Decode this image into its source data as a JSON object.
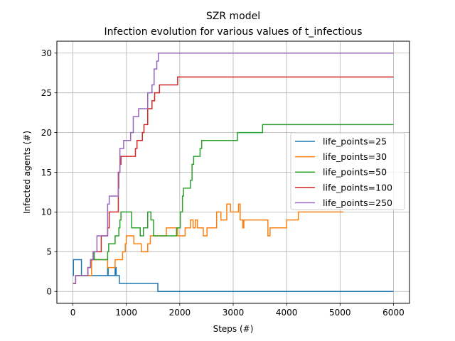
{
  "chart_data": {
    "type": "line",
    "title": "SZR model",
    "subtitle": "Infection evolution for various values of t_infectious",
    "xlabel": "Steps (#)",
    "ylabel": "Infected agents (#)",
    "xlim": [
      -300,
      6300
    ],
    "ylim": [
      -1.5,
      31.5
    ],
    "x_ticks": [
      0,
      1000,
      2000,
      3000,
      4000,
      5000,
      6000
    ],
    "y_ticks": [
      0,
      5,
      10,
      15,
      20,
      25,
      30
    ],
    "grid": true,
    "legend_position": "center-right",
    "series": [
      {
        "name": "life_points=25",
        "color": "#1f77b4",
        "points": [
          [
            0,
            2
          ],
          [
            10,
            2
          ],
          [
            10,
            4
          ],
          [
            160,
            4
          ],
          [
            160,
            2
          ],
          [
            650,
            2
          ],
          [
            650,
            3
          ],
          [
            660,
            3
          ],
          [
            660,
            2
          ],
          [
            790,
            2
          ],
          [
            790,
            3
          ],
          [
            810,
            3
          ],
          [
            810,
            2
          ],
          [
            870,
            2
          ],
          [
            870,
            1
          ],
          [
            1590,
            1
          ],
          [
            1590,
            0
          ],
          [
            6000,
            0
          ]
        ]
      },
      {
        "name": "life_points=30",
        "color": "#ff7f0e",
        "points": [
          [
            0,
            1
          ],
          [
            50,
            1
          ],
          [
            50,
            2
          ],
          [
            350,
            2
          ],
          [
            350,
            4
          ],
          [
            650,
            4
          ],
          [
            650,
            3
          ],
          [
            790,
            3
          ],
          [
            790,
            4
          ],
          [
            930,
            4
          ],
          [
            930,
            5
          ],
          [
            980,
            5
          ],
          [
            980,
            6
          ],
          [
            1000,
            6
          ],
          [
            1000,
            7
          ],
          [
            1140,
            7
          ],
          [
            1140,
            6
          ],
          [
            1280,
            6
          ],
          [
            1280,
            5
          ],
          [
            1400,
            5
          ],
          [
            1400,
            6
          ],
          [
            1450,
            6
          ],
          [
            1450,
            7
          ],
          [
            1750,
            7
          ],
          [
            1750,
            8
          ],
          [
            1960,
            8
          ],
          [
            1960,
            7
          ],
          [
            2100,
            7
          ],
          [
            2100,
            8
          ],
          [
            2200,
            8
          ],
          [
            2200,
            9
          ],
          [
            2250,
            9
          ],
          [
            2250,
            8
          ],
          [
            2290,
            8
          ],
          [
            2290,
            9
          ],
          [
            2330,
            9
          ],
          [
            2330,
            8
          ],
          [
            2440,
            8
          ],
          [
            2440,
            7
          ],
          [
            2510,
            7
          ],
          [
            2510,
            8
          ],
          [
            2690,
            8
          ],
          [
            2690,
            10
          ],
          [
            2770,
            10
          ],
          [
            2770,
            9
          ],
          [
            2880,
            9
          ],
          [
            2880,
            11
          ],
          [
            2950,
            11
          ],
          [
            2950,
            10
          ],
          [
            3100,
            10
          ],
          [
            3100,
            11
          ],
          [
            3130,
            11
          ],
          [
            3130,
            9
          ],
          [
            3180,
            9
          ],
          [
            3180,
            8
          ],
          [
            3200,
            8
          ],
          [
            3200,
            9
          ],
          [
            3650,
            9
          ],
          [
            3650,
            7
          ],
          [
            3690,
            7
          ],
          [
            3690,
            8
          ],
          [
            4000,
            8
          ],
          [
            4000,
            9
          ],
          [
            4220,
            9
          ],
          [
            4220,
            10
          ],
          [
            5060,
            10
          ]
        ]
      },
      {
        "name": "life_points=50",
        "color": "#2ca02c",
        "points": [
          [
            0,
            1
          ],
          [
            50,
            1
          ],
          [
            50,
            2
          ],
          [
            280,
            2
          ],
          [
            280,
            3
          ],
          [
            330,
            3
          ],
          [
            330,
            4
          ],
          [
            380,
            4
          ],
          [
            380,
            5
          ],
          [
            400,
            5
          ],
          [
            400,
            4
          ],
          [
            650,
            4
          ],
          [
            650,
            5
          ],
          [
            670,
            5
          ],
          [
            670,
            6
          ],
          [
            790,
            6
          ],
          [
            790,
            7
          ],
          [
            860,
            7
          ],
          [
            860,
            8
          ],
          [
            880,
            8
          ],
          [
            880,
            9
          ],
          [
            900,
            9
          ],
          [
            900,
            10
          ],
          [
            1100,
            10
          ],
          [
            1100,
            8
          ],
          [
            1260,
            8
          ],
          [
            1260,
            7
          ],
          [
            1320,
            7
          ],
          [
            1320,
            8
          ],
          [
            1400,
            8
          ],
          [
            1400,
            10
          ],
          [
            1460,
            10
          ],
          [
            1460,
            9
          ],
          [
            1510,
            9
          ],
          [
            1510,
            7
          ],
          [
            1940,
            7
          ],
          [
            1940,
            8
          ],
          [
            2010,
            8
          ],
          [
            2010,
            10
          ],
          [
            2050,
            10
          ],
          [
            2050,
            12
          ],
          [
            2070,
            12
          ],
          [
            2070,
            13
          ],
          [
            2200,
            13
          ],
          [
            2200,
            14
          ],
          [
            2230,
            14
          ],
          [
            2230,
            16
          ],
          [
            2260,
            16
          ],
          [
            2260,
            17
          ],
          [
            2380,
            17
          ],
          [
            2380,
            18
          ],
          [
            2410,
            18
          ],
          [
            2410,
            19
          ],
          [
            3080,
            19
          ],
          [
            3080,
            20
          ],
          [
            3550,
            20
          ],
          [
            3550,
            21
          ],
          [
            6000,
            21
          ]
        ]
      },
      {
        "name": "life_points=100",
        "color": "#d62728",
        "points": [
          [
            0,
            1
          ],
          [
            50,
            1
          ],
          [
            50,
            2
          ],
          [
            280,
            2
          ],
          [
            280,
            3
          ],
          [
            330,
            3
          ],
          [
            330,
            4
          ],
          [
            380,
            4
          ],
          [
            380,
            5
          ],
          [
            530,
            5
          ],
          [
            530,
            7
          ],
          [
            650,
            7
          ],
          [
            650,
            8
          ],
          [
            680,
            8
          ],
          [
            680,
            10
          ],
          [
            850,
            10
          ],
          [
            850,
            15
          ],
          [
            880,
            15
          ],
          [
            880,
            16
          ],
          [
            900,
            16
          ],
          [
            900,
            17
          ],
          [
            1170,
            17
          ],
          [
            1170,
            18
          ],
          [
            1200,
            18
          ],
          [
            1200,
            19
          ],
          [
            1300,
            19
          ],
          [
            1300,
            20
          ],
          [
            1330,
            20
          ],
          [
            1330,
            21
          ],
          [
            1400,
            21
          ],
          [
            1400,
            23
          ],
          [
            1480,
            23
          ],
          [
            1480,
            24
          ],
          [
            1530,
            24
          ],
          [
            1530,
            25
          ],
          [
            1620,
            25
          ],
          [
            1620,
            26
          ],
          [
            1960,
            26
          ],
          [
            1960,
            27
          ],
          [
            6000,
            27
          ]
        ]
      },
      {
        "name": "life_points=250",
        "color": "#9467bd",
        "points": [
          [
            0,
            1
          ],
          [
            50,
            1
          ],
          [
            50,
            2
          ],
          [
            280,
            2
          ],
          [
            280,
            3
          ],
          [
            330,
            3
          ],
          [
            330,
            4
          ],
          [
            380,
            4
          ],
          [
            380,
            5
          ],
          [
            450,
            5
          ],
          [
            450,
            7
          ],
          [
            650,
            7
          ],
          [
            650,
            11
          ],
          [
            680,
            11
          ],
          [
            680,
            12
          ],
          [
            850,
            12
          ],
          [
            850,
            13
          ],
          [
            860,
            13
          ],
          [
            860,
            15
          ],
          [
            880,
            15
          ],
          [
            880,
            18
          ],
          [
            950,
            18
          ],
          [
            950,
            19
          ],
          [
            1080,
            19
          ],
          [
            1080,
            20
          ],
          [
            1130,
            20
          ],
          [
            1130,
            22
          ],
          [
            1230,
            22
          ],
          [
            1230,
            23
          ],
          [
            1400,
            23
          ],
          [
            1400,
            25
          ],
          [
            1480,
            25
          ],
          [
            1480,
            26
          ],
          [
            1520,
            26
          ],
          [
            1520,
            28
          ],
          [
            1570,
            28
          ],
          [
            1570,
            29
          ],
          [
            1600,
            29
          ],
          [
            1600,
            30
          ],
          [
            6000,
            30
          ]
        ]
      }
    ]
  }
}
